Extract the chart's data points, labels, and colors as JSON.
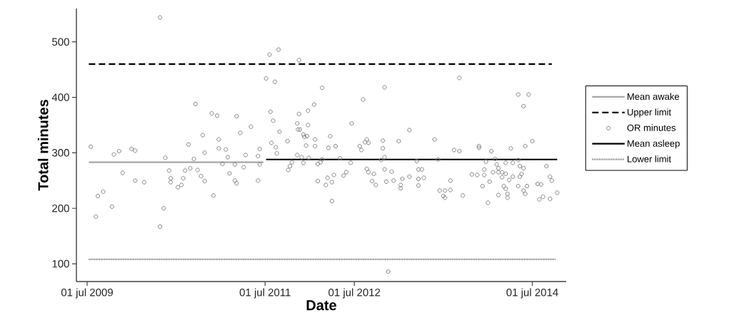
{
  "chart_data": {
    "type": "scatter",
    "xlabel": "Date",
    "ylabel": "Total minutes",
    "xlim": [
      "2009-05-18",
      "2014-11-17"
    ],
    "ylim": [
      68,
      560
    ],
    "xticks": [
      {
        "value": "2009-07-01",
        "label": "01 jul 2009"
      },
      {
        "value": "2011-07-01",
        "label": "01 jul 2011"
      },
      {
        "value": "2012-07-01",
        "label": "01 jul 2012"
      },
      {
        "value": "2014-07-01",
        "label": "01 jul 2014"
      }
    ],
    "yticks": [
      100,
      200,
      300,
      400,
      500
    ],
    "legend": "right",
    "series": [
      {
        "name": "Mean awake",
        "type": "line",
        "color": "#a6a6a6",
        "line_style": "solid",
        "x": [
          "2009-07-08",
          "2011-06-24"
        ],
        "values": [
          283,
          283
        ]
      },
      {
        "name": "Upper limit",
        "type": "line",
        "color": "#000000",
        "line_style": "dashed",
        "x": [
          "2009-07-08",
          "2014-09-19"
        ],
        "values": [
          460,
          460
        ]
      },
      {
        "name": "OR minutes",
        "color": "#808080",
        "marker": "circle",
        "x": [
          "2009-07-16",
          "2009-08-14",
          "2009-08-06",
          "2009-09-05",
          "2009-10-11",
          "2009-10-19",
          "2009-11-09",
          "2009-11-24",
          "2009-12-30",
          "2010-01-14",
          "2010-01-14",
          "2010-02-20",
          "2010-04-26",
          "2010-04-26",
          "2010-05-11",
          "2010-05-18",
          "2010-06-02",
          "2010-06-09",
          "2010-06-09",
          "2010-07-08",
          "2010-07-23",
          "2010-07-30",
          "2010-08-07",
          "2010-08-21",
          "2010-08-28",
          "2010-09-12",
          "2010-09-19",
          "2010-09-27",
          "2010-10-11",
          "2010-10-18",
          "2010-10-26",
          "2010-10-26",
          "2010-11-24",
          "2010-12-01",
          "2010-12-16",
          "2010-12-23",
          "2010-12-23",
          "2011-01-07",
          "2011-01-21",
          "2011-01-29",
          "2011-02-05",
          "2011-02-27",
          "2011-02-27",
          "2011-03-06",
          "2011-03-06",
          "2011-03-21",
          "2011-04-04",
          "2011-04-12",
          "2011-05-04",
          "2011-06-02",
          "2011-06-02",
          "2011-06-09",
          "2011-06-09",
          "2011-07-05",
          "2011-07-19",
          "2011-07-23",
          "2011-07-27",
          "2011-08-03",
          "2011-08-10",
          "2011-08-14",
          "2011-08-18",
          "2011-08-25",
          "2011-08-29",
          "2011-10-01",
          "2011-10-04",
          "2011-10-11",
          "2011-10-19",
          "2011-11-10",
          "2011-11-10",
          "2011-11-13",
          "2011-11-17",
          "2011-11-17",
          "2011-11-21",
          "2011-11-28",
          "2011-12-05",
          "2011-12-05",
          "2011-12-09",
          "2011-12-16",
          "2011-12-20",
          "2011-12-24",
          "2011-12-24",
          "2011-12-27",
          "2012-01-18",
          "2012-01-22",
          "2012-01-22",
          "2012-02-02",
          "2012-02-02",
          "2012-02-13",
          "2012-02-20",
          "2012-02-20",
          "2012-03-06",
          "2012-03-13",
          "2012-03-17",
          "2012-03-24",
          "2012-03-31",
          "2012-03-31",
          "2012-04-08",
          "2012-04-15",
          "2012-05-03",
          "2012-05-18",
          "2012-05-29",
          "2012-06-16",
          "2012-06-20",
          "2012-07-23",
          "2012-07-30",
          "2012-08-06",
          "2012-08-14",
          "2012-08-21",
          "2012-08-28",
          "2012-08-21",
          "2012-08-28",
          "2012-09-19",
          "2012-09-12",
          "2012-09-27",
          "2012-10-19",
          "2012-10-26",
          "2012-10-26",
          "2012-11-02",
          "2012-11-02",
          "2012-11-02",
          "2012-11-09",
          "2012-11-17",
          "2012-12-01",
          "2012-12-09",
          "2012-12-30",
          "2013-01-07",
          "2013-01-07",
          "2013-01-14",
          "2013-02-12",
          "2013-02-12",
          "2013-03-14",
          "2013-03-21",
          "2013-03-21",
          "2013-03-21",
          "2013-04-04",
          "2013-04-12",
          "2013-05-26",
          "2013-06-09",
          "2013-06-16",
          "2013-07-01",
          "2013-07-08",
          "2013-07-08",
          "2013-07-30",
          "2013-07-30",
          "2013-08-14",
          "2013-09-05",
          "2013-09-05",
          "2013-09-19",
          "2013-10-26",
          "2013-11-17",
          "2013-11-24",
          "2013-11-24",
          "2013-12-09",
          "2013-12-16",
          "2013-12-16",
          "2013-12-23",
          "2014-01-07",
          "2013-12-31",
          "2014-01-14",
          "2014-01-21",
          "2014-01-29",
          "2014-02-05",
          "2014-02-12",
          "2014-02-12",
          "2014-02-12",
          "2014-02-27",
          "2014-02-27",
          "2014-03-06",
          "2014-03-14",
          "2014-03-14",
          "2014-03-14",
          "2014-03-21",
          "2014-03-21",
          "2014-03-28",
          "2014-04-04",
          "2014-04-12",
          "2014-04-12",
          "2014-05-04",
          "2014-05-04",
          "2014-05-04",
          "2014-05-11",
          "2014-05-11",
          "2014-05-18",
          "2014-05-26",
          "2014-05-26",
          "2014-05-26",
          "2014-06-02",
          "2014-06-02",
          "2014-06-09",
          "2014-06-16",
          "2014-07-01",
          "2014-07-23",
          "2014-07-30",
          "2014-08-06",
          "2014-08-14",
          "2014-08-28",
          "2014-09-12",
          "2014-09-12",
          "2014-09-19",
          "2014-10-11"
        ],
        "values": [
          311,
          222,
          185,
          230,
          203,
          297,
          303,
          264,
          307,
          304,
          250,
          247,
          544,
          167,
          200,
          291,
          268,
          254,
          247,
          238,
          242,
          254,
          268,
          315,
          272,
          289,
          388,
          269,
          258,
          332,
          300,
          249,
          371,
          223,
          367,
          324,
          308,
          280,
          306,
          292,
          263,
          250,
          279,
          366,
          245,
          336,
          274,
          296,
          347,
          250,
          294,
          279,
          307,
          434,
          477,
          374,
          318,
          358,
          428,
          310,
          299,
          486,
          338,
          321,
          269,
          276,
          283,
          296,
          353,
          342,
          467,
          370,
          342,
          292,
          333,
          282,
          329,
          313,
          330,
          350,
          376,
          291,
          387,
          324,
          312,
          280,
          249,
          283,
          288,
          417,
          242,
          255,
          309,
          330,
          247,
          213,
          260,
          312,
          290,
          259,
          265,
          282,
          353,
          312,
          305,
          396,
          319,
          324,
          318,
          271,
          265,
          262,
          249,
          242,
          287,
          308,
          322,
          292,
          418,
          270,
          248,
          86,
          266,
          250,
          321,
          242,
          236,
          253,
          341,
          257,
          285,
          270,
          241,
          253,
          270,
          255,
          324,
          288,
          232,
          222,
          219,
          232,
          250,
          233,
          305,
          303,
          435,
          223,
          261,
          260,
          312,
          309,
          240,
          270,
          260,
          284,
          248,
          210,
          303,
          265,
          289,
          279,
          265,
          272,
          224,
          265,
          256,
          240,
          262,
          282,
          235,
          226,
          219,
          251,
          308,
          257,
          282,
          287,
          405,
          240,
          257,
          276,
          262,
          384,
          272,
          232,
          312,
          226,
          240,
          405,
          321,
          244,
          216,
          243,
          221,
          276,
          257,
          217,
          250,
          228
        ]
      },
      {
        "name": "Mean asleep",
        "type": "line",
        "color": "#000000",
        "line_style": "solid",
        "x": [
          "2011-07-05",
          "2014-10-11"
        ],
        "values": [
          288,
          288
        ]
      },
      {
        "name": "Lower limit",
        "type": "line",
        "color": "#707070",
        "line_style": "dotted",
        "x": [
          "2009-07-08",
          "2014-10-04"
        ],
        "values": [
          108,
          108
        ]
      }
    ]
  }
}
